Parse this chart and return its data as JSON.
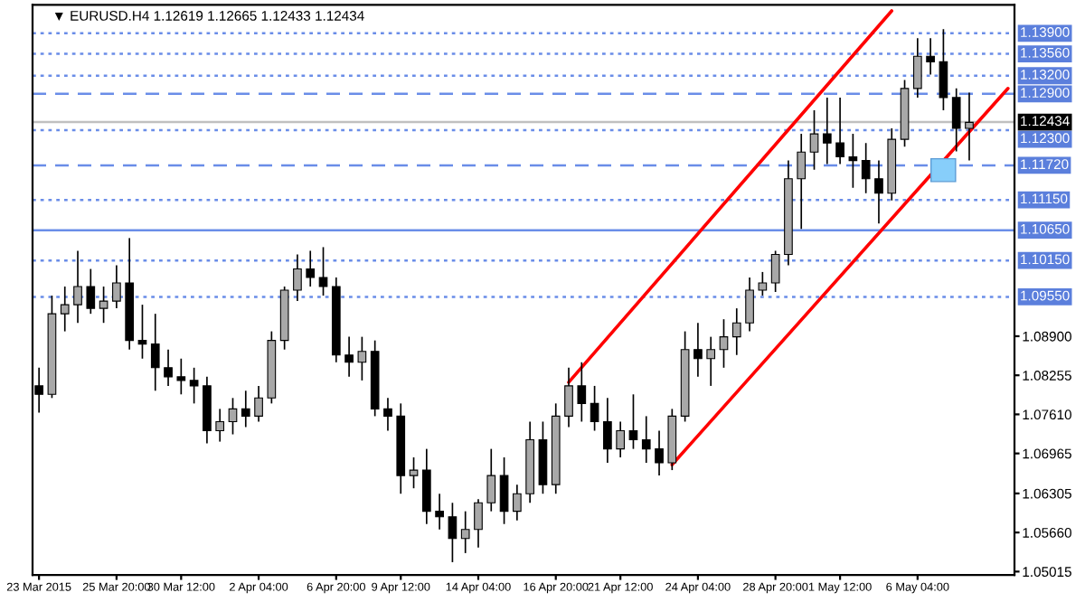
{
  "chart_data": {
    "type": "candlestick",
    "title": "▼ EURUSD.H4 1.12619 1.12665 1.12433 1.12434",
    "categories": [
      "23 Mar 2015",
      null,
      null,
      null,
      null,
      null,
      "25 Mar 20:00",
      null,
      null,
      null,
      null,
      "30 Mar 12:00",
      null,
      null,
      null,
      null,
      null,
      "2 Apr 04:00",
      null,
      null,
      null,
      null,
      null,
      "6 Apr 20:00",
      null,
      null,
      null,
      null,
      "9 Apr 12:00",
      null,
      null,
      null,
      null,
      null,
      "14 Apr 04:00",
      null,
      null,
      null,
      null,
      null,
      "16 Apr 20:00",
      null,
      null,
      null,
      null,
      "21 Apr 12:00",
      null,
      null,
      null,
      null,
      null,
      "24 Apr 04:00",
      null,
      null,
      null,
      null,
      null,
      "28 Apr 20:00",
      null,
      null,
      null,
      null,
      "1 May 12:00",
      null,
      null,
      null,
      null,
      null,
      "6 May 04:00",
      null,
      null,
      null,
      null,
      null,
      null,
      null
    ],
    "ohlc": [
      [
        1.0808,
        1.0838,
        1.0764,
        1.0794
      ],
      [
        1.0794,
        1.0957,
        1.0788,
        1.0927
      ],
      [
        1.0927,
        1.0972,
        1.0898,
        1.0942
      ],
      [
        1.0942,
        1.1031,
        1.0912,
        1.0972
      ],
      [
        1.0972,
        1.1001,
        1.0927,
        1.0936
      ],
      [
        1.0936,
        1.0972,
        1.0912,
        1.0948
      ],
      [
        1.0948,
        1.1007,
        1.0936,
        1.0978
      ],
      [
        1.0978,
        1.1052,
        1.0868,
        1.0883
      ],
      [
        1.0883,
        1.0942,
        1.0853,
        1.0877
      ],
      [
        1.0877,
        1.0927,
        1.08,
        1.0838
      ],
      [
        1.0838,
        1.0868,
        1.0808,
        1.0823
      ],
      [
        1.0823,
        1.0853,
        1.0794,
        1.0817
      ],
      [
        1.0817,
        1.0838,
        1.0779,
        1.0808
      ],
      [
        1.0808,
        1.0823,
        1.0713,
        1.0734
      ],
      [
        1.0734,
        1.077,
        1.0716,
        1.0749
      ],
      [
        1.0749,
        1.0788,
        1.0728,
        1.077
      ],
      [
        1.077,
        1.08,
        1.074,
        1.0758
      ],
      [
        1.0758,
        1.0808,
        1.0749,
        1.0788
      ],
      [
        1.0788,
        1.0898,
        1.0779,
        1.0883
      ],
      [
        1.0883,
        1.0972,
        1.0868,
        1.0966
      ],
      [
        1.0966,
        1.1025,
        1.0948,
        1.1001
      ],
      [
        1.1001,
        1.1031,
        1.0972,
        1.0987
      ],
      [
        1.0987,
        1.1037,
        1.0957,
        1.0972
      ],
      [
        1.0972,
        1.0987,
        1.0847,
        1.0859
      ],
      [
        1.0859,
        1.0889,
        1.0823,
        1.0847
      ],
      [
        1.0847,
        1.0889,
        1.0817,
        1.0865
      ],
      [
        1.0865,
        1.0883,
        1.0758,
        1.077
      ],
      [
        1.077,
        1.0788,
        1.0734,
        1.0758
      ],
      [
        1.0758,
        1.0779,
        1.063,
        1.066
      ],
      [
        1.066,
        1.069,
        1.0639,
        1.0669
      ],
      [
        1.0669,
        1.0704,
        1.058,
        1.0601
      ],
      [
        1.0601,
        1.063,
        1.0571,
        1.0592
      ],
      [
        1.0592,
        1.0615,
        1.0517,
        1.0556
      ],
      [
        1.0556,
        1.0601,
        1.0532,
        1.0571
      ],
      [
        1.0571,
        1.0621,
        1.0541,
        1.0615
      ],
      [
        1.0615,
        1.0704,
        1.0601,
        1.066
      ],
      [
        1.066,
        1.069,
        1.058,
        1.0601
      ],
      [
        1.0601,
        1.0645,
        1.0586,
        1.063
      ],
      [
        1.063,
        1.0749,
        1.0615,
        1.0719
      ],
      [
        1.0719,
        1.0749,
        1.063,
        1.0645
      ],
      [
        1.0645,
        1.0779,
        1.063,
        1.0758
      ],
      [
        1.0758,
        1.0838,
        1.074,
        1.0808
      ],
      [
        1.0808,
        1.0847,
        1.0749,
        1.0779
      ],
      [
        1.0779,
        1.0808,
        1.0734,
        1.0749
      ],
      [
        1.0749,
        1.0788,
        1.0681,
        1.0704
      ],
      [
        1.0704,
        1.0749,
        1.069,
        1.0734
      ],
      [
        1.0734,
        1.0794,
        1.0704,
        1.0719
      ],
      [
        1.0719,
        1.0758,
        1.0681,
        1.0704
      ],
      [
        1.0704,
        1.0734,
        1.066,
        1.0681
      ],
      [
        1.0681,
        1.077,
        1.0669,
        1.0758
      ],
      [
        1.0758,
        1.0898,
        1.0749,
        1.0868
      ],
      [
        1.0868,
        1.0912,
        1.0823,
        1.0853
      ],
      [
        1.0853,
        1.0889,
        1.0808,
        1.0868
      ],
      [
        1.0868,
        1.0918,
        1.0838,
        1.0889
      ],
      [
        1.0889,
        1.0936,
        1.0859,
        1.0912
      ],
      [
        1.0912,
        1.0987,
        1.0898,
        1.0966
      ],
      [
        1.0966,
        1.0996,
        1.0957,
        1.0978
      ],
      [
        1.0978,
        1.1031,
        1.0963,
        1.1025
      ],
      [
        1.1025,
        1.118,
        1.1007,
        1.115
      ],
      [
        1.115,
        1.1224,
        1.1067,
        1.1194
      ],
      [
        1.1194,
        1.1263,
        1.1165,
        1.1224
      ],
      [
        1.1224,
        1.1284,
        1.1174,
        1.1209
      ],
      [
        1.1209,
        1.1284,
        1.1174,
        1.1186
      ],
      [
        1.1186,
        1.1224,
        1.1135,
        1.118
      ],
      [
        1.118,
        1.1209,
        1.1126,
        1.115
      ],
      [
        1.115,
        1.118,
        1.1076,
        1.1126
      ],
      [
        1.1126,
        1.1233,
        1.1114,
        1.1215
      ],
      [
        1.1215,
        1.1313,
        1.1203,
        1.1299
      ],
      [
        1.1299,
        1.1382,
        1.1284,
        1.1352
      ],
      [
        1.1352,
        1.1382,
        1.1322,
        1.1343
      ],
      [
        1.1343,
        1.1397,
        1.1263,
        1.1284
      ],
      [
        1.1284,
        1.1299,
        1.1195,
        1.1233
      ],
      [
        1.1233,
        1.1292,
        1.118,
        1.1243
      ],
      null,
      null,
      null
    ],
    "series": [
      {
        "type": "line",
        "color": "#ff0000",
        "values": [
          null,
          null,
          null,
          null,
          null,
          null,
          null,
          null,
          null,
          null,
          null,
          null,
          null,
          null,
          null,
          null,
          null,
          null,
          null,
          null,
          null,
          null,
          null,
          null,
          null,
          null,
          null,
          null,
          null,
          null,
          null,
          null,
          null,
          null,
          null,
          null,
          null,
          null,
          null,
          null,
          null,
          1.0814,
          null,
          null,
          null,
          null,
          null,
          null,
          null,
          null,
          null,
          null,
          null,
          null,
          null,
          null,
          null,
          null,
          null,
          null,
          null,
          null,
          null,
          null,
          null,
          null,
          1.1427,
          null,
          null,
          null,
          null,
          null,
          null,
          null,
          null,
          null
        ]
      },
      {
        "type": "line",
        "color": "#ff0000",
        "values": [
          null,
          null,
          null,
          null,
          null,
          null,
          null,
          null,
          null,
          null,
          null,
          null,
          null,
          null,
          null,
          null,
          null,
          null,
          null,
          null,
          null,
          null,
          null,
          null,
          null,
          null,
          null,
          null,
          null,
          null,
          null,
          null,
          null,
          null,
          null,
          null,
          null,
          null,
          null,
          null,
          null,
          null,
          null,
          null,
          null,
          null,
          null,
          null,
          null,
          1.0678,
          null,
          null,
          null,
          null,
          null,
          null,
          null,
          null,
          null,
          null,
          null,
          null,
          null,
          null,
          null,
          null,
          null,
          null,
          null,
          null,
          null,
          null,
          null,
          null,
          null,
          1.1299
        ]
      }
    ],
    "ylim": [
      1.0496,
      1.1437
    ],
    "yticks": [
      1.05015,
      {
        "value": 1.0566,
        "label": "1.05660"
      },
      1.06305,
      1.06965,
      {
        "value": 1.0761,
        "label": "1.07610"
      },
      1.08255,
      {
        "value": 1.089,
        "label": "1.08900"
      }
    ],
    "ref_lines": [
      {
        "axis": "y",
        "value": 1.139,
        "label": "1.13900",
        "color": "#6a8de8",
        "line_style": "dotted"
      },
      {
        "axis": "y",
        "value": 1.1356,
        "label": "1.13560",
        "color": "#6a8de8",
        "line_style": "dotted"
      },
      {
        "axis": "y",
        "value": 1.132,
        "label": "1.13200",
        "color": "#6a8de8",
        "line_style": "dotted"
      },
      {
        "axis": "y",
        "value": 1.129,
        "label": "1.12900",
        "color": "#6a8de8",
        "line_style": "dashed"
      },
      {
        "axis": "y",
        "value": 1.12434,
        "label": "1.12434",
        "color": "#c0c0c0",
        "line_style": "solid"
      },
      {
        "axis": "y",
        "value": 1.123,
        "label": "1.12300",
        "color": "#6a8de8",
        "line_style": "dotted"
      },
      {
        "axis": "y",
        "value": 1.1172,
        "label": "1.11720",
        "color": "#6a8de8",
        "line_style": "dashed"
      },
      {
        "axis": "y",
        "value": 1.1115,
        "label": "1.11150",
        "color": "#6a8de8",
        "line_style": "dotted"
      },
      {
        "axis": "y",
        "value": 1.1065,
        "label": "1.10650",
        "color": "#6a8de8",
        "line_style": "solid"
      },
      {
        "axis": "y",
        "value": 1.1015,
        "label": "1.10150",
        "color": "#6a8de8",
        "line_style": "dotted"
      },
      {
        "axis": "y",
        "value": 1.0955,
        "label": "1.09550",
        "color": "#6a8de8",
        "line_style": "dotted"
      }
    ]
  }
}
